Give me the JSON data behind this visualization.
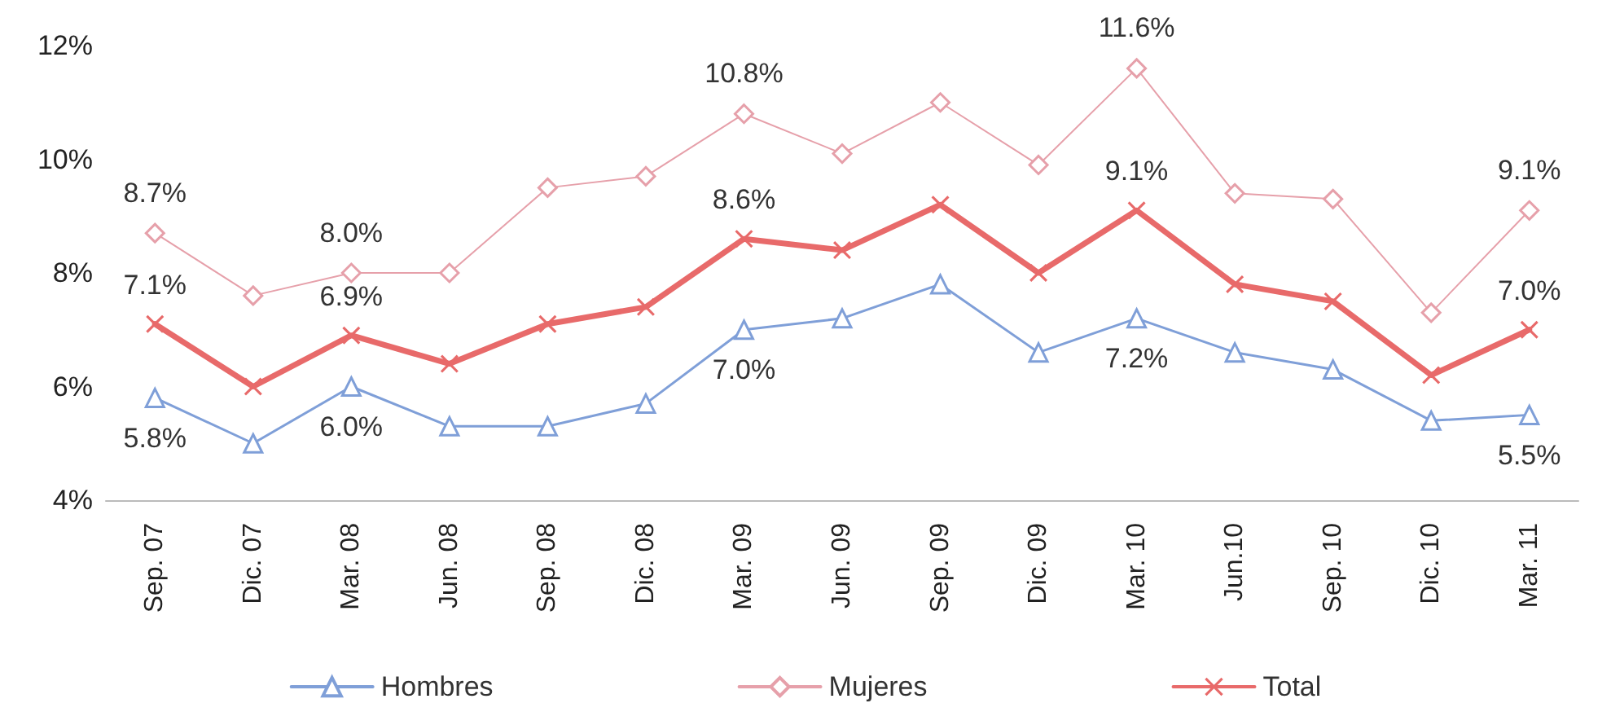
{
  "chart_data": {
    "type": "line",
    "categories": [
      "Sep. 07",
      "Dic. 07",
      "Mar. 08",
      "Jun. 08",
      "Sep. 08",
      "Dic. 08",
      "Mar. 09",
      "Jun. 09",
      "Sep. 09",
      "Dic. 09",
      "Mar. 10",
      "Jun.10",
      "Sep. 10",
      "Dic. 10",
      "Mar. 11"
    ],
    "ylim": [
      4,
      12
    ],
    "yticks": [
      {
        "value": 4,
        "label": "4%"
      },
      {
        "value": 6,
        "label": "6%"
      },
      {
        "value": 8,
        "label": "8%"
      },
      {
        "value": 10,
        "label": "10%"
      },
      {
        "value": 12,
        "label": "12%"
      }
    ],
    "grid": false,
    "legend": "bottom",
    "line_style": "solid",
    "series": [
      {
        "name": "Hombres",
        "color": "#7f9fd8",
        "marker": "triangle",
        "values": [
          5.8,
          5.0,
          6.0,
          5.3,
          5.3,
          5.7,
          7.0,
          7.2,
          7.8,
          6.6,
          7.2,
          6.6,
          6.3,
          5.4,
          5.5
        ],
        "value_labels": [
          "5.8%",
          null,
          "6.0%",
          null,
          null,
          null,
          "7.0%",
          null,
          null,
          null,
          "7.2%",
          null,
          null,
          null,
          "5.5%"
        ]
      },
      {
        "name": "Mujeres",
        "color": "#e6a0aa",
        "marker": "diamond",
        "values": [
          8.7,
          7.6,
          8.0,
          8.0,
          9.5,
          9.7,
          10.8,
          10.1,
          11.0,
          9.9,
          11.6,
          9.4,
          9.3,
          7.3,
          9.1
        ],
        "value_labels": [
          "8.7%",
          null,
          "8.0%",
          null,
          null,
          null,
          "10.8%",
          null,
          null,
          null,
          "11.6%",
          null,
          null,
          null,
          "9.1%"
        ]
      },
      {
        "name": "Total",
        "color": "#e86a6a",
        "marker": "cross",
        "values": [
          7.1,
          6.0,
          6.9,
          6.4,
          7.1,
          7.4,
          8.6,
          8.4,
          9.2,
          8.0,
          9.1,
          7.8,
          7.5,
          6.2,
          7.0
        ],
        "value_labels": [
          "7.1%",
          null,
          "6.9%",
          null,
          null,
          null,
          "8.6%",
          null,
          null,
          null,
          "9.1%",
          null,
          null,
          null,
          "7.0%"
        ]
      }
    ]
  }
}
